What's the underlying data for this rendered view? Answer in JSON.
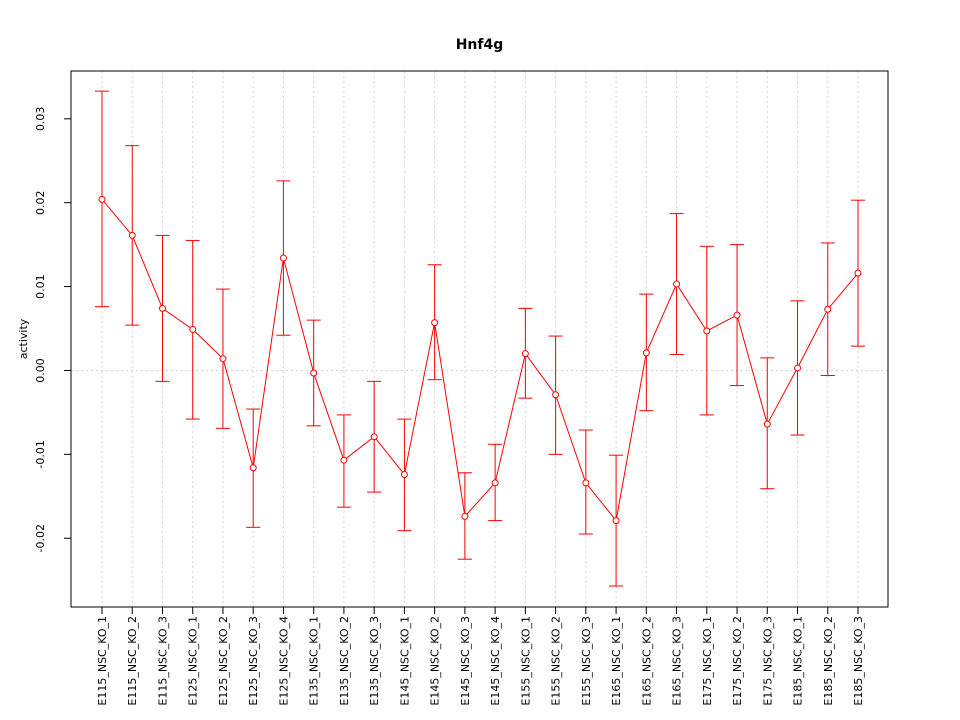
{
  "chart_data": {
    "type": "line",
    "title": "Hnf4g",
    "xlabel": "",
    "ylabel": "activity",
    "ylim": [
      -0.0282,
      0.0357
    ],
    "yticks": [
      -0.02,
      -0.01,
      0.0,
      0.01,
      0.02,
      0.03
    ],
    "ytick_labels": [
      "-0.02",
      "-0.01",
      "0.00",
      "0.01",
      "0.02",
      "0.03"
    ],
    "grid": true,
    "reference_line": 0.0,
    "colors": {
      "series": "#ff0000",
      "grid": "#d3d3d3",
      "axis": "#000000"
    },
    "categories": [
      "E115_NSC_KO_1",
      "E115_NSC_KO_2",
      "E115_NSC_KO_3",
      "E125_NSC_KO_1",
      "E125_NSC_KO_2",
      "E125_NSC_KO_3",
      "E125_NSC_KO_4",
      "E135_NSC_KO_1",
      "E135_NSC_KO_2",
      "E135_NSC_KO_3",
      "E145_NSC_KO_1",
      "E145_NSC_KO_2",
      "E145_NSC_KO_3",
      "E145_NSC_KO_4",
      "E155_NSC_KO_1",
      "E155_NSC_KO_2",
      "E155_NSC_KO_3",
      "E165_NSC_KO_1",
      "E165_NSC_KO_2",
      "E165_NSC_KO_3",
      "E175_NSC_KO_1",
      "E175_NSC_KO_2",
      "E175_NSC_KO_3",
      "E185_NSC_KO_1",
      "E185_NSC_KO_2",
      "E185_NSC_KO_3"
    ],
    "series": [
      {
        "values": [
          0.0204,
          0.0161,
          0.0074,
          0.0049,
          0.0014,
          -0.0116,
          0.0134,
          -0.0003,
          -0.0107,
          -0.0079,
          -0.0124,
          0.0057,
          -0.0174,
          -0.0134,
          0.002,
          -0.0029,
          -0.0134,
          -0.0179,
          0.0021,
          0.0103,
          0.0047,
          0.0066,
          -0.0064,
          0.0003,
          0.0073,
          0.0116
        ],
        "lower": [
          0.0076,
          0.0054,
          -0.0013,
          -0.0058,
          -0.0069,
          -0.0187,
          0.0042,
          -0.0066,
          -0.0163,
          -0.0145,
          -0.0191,
          -0.0011,
          -0.0225,
          -0.0179,
          -0.0033,
          -0.01,
          -0.0195,
          -0.0257,
          -0.0048,
          0.0019,
          -0.0053,
          -0.0018,
          -0.0141,
          -0.0077,
          -0.0006,
          0.0029
        ],
        "upper": [
          0.0333,
          0.0268,
          0.0161,
          0.0155,
          0.0097,
          -0.0046,
          0.0226,
          0.006,
          -0.0053,
          -0.0013,
          -0.0058,
          0.0126,
          -0.0122,
          -0.0088,
          0.0074,
          0.0041,
          -0.0071,
          -0.0101,
          0.0091,
          0.0187,
          0.0148,
          0.015,
          0.0015,
          0.0083,
          0.0152,
          0.0203
        ]
      }
    ]
  }
}
